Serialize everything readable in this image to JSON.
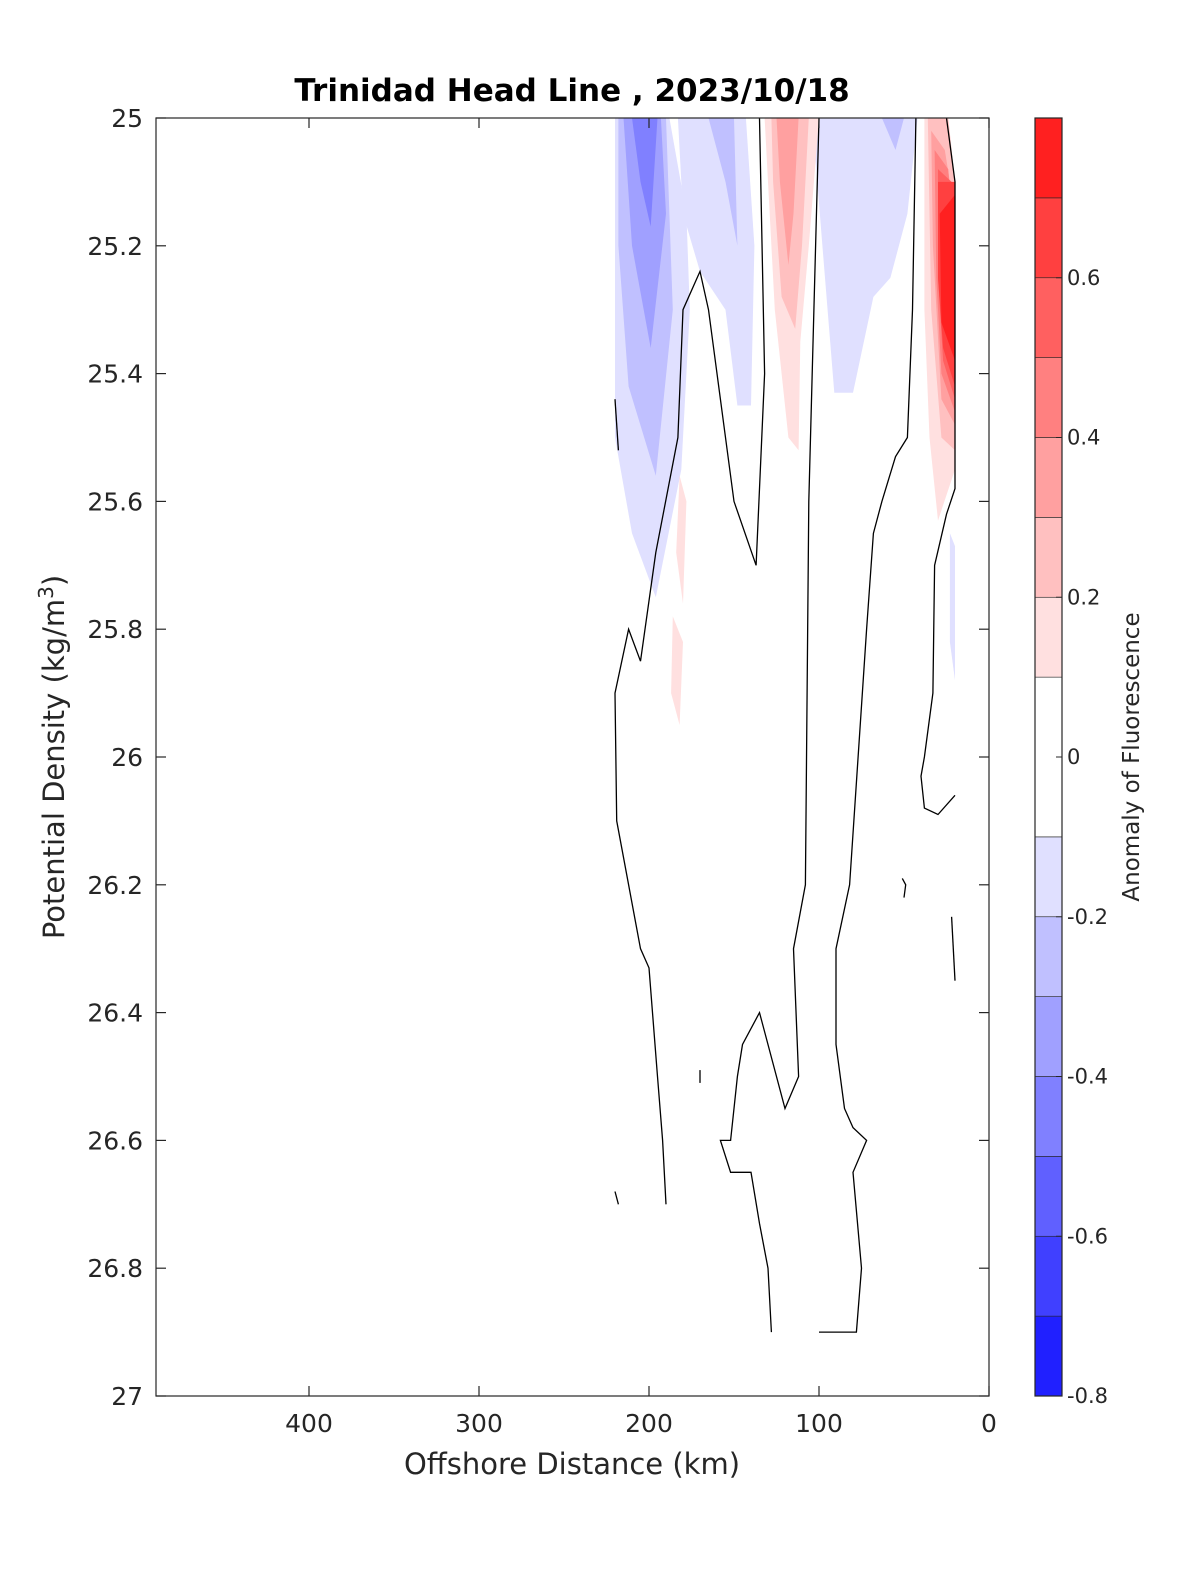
{
  "chart_data": {
    "type": "contour",
    "title": "Trinidad Head Line , 2023/10/18",
    "xlabel": "Offshore Distance (km)",
    "ylabel_main": "Potential Density (kg/m",
    "ylabel_sup": "3",
    "ylabel_end": ")",
    "xlim": [
      490,
      0
    ],
    "ylim": [
      25,
      27
    ],
    "x_reversed": true,
    "y_reversed": true,
    "x_ticks": [
      400,
      300,
      200,
      100,
      0
    ],
    "y_ticks": [
      25,
      25.2,
      25.4,
      25.6,
      25.8,
      26,
      26.2,
      26.4,
      26.6,
      26.8,
      27
    ],
    "y_tick_labels": [
      "25",
      "25.2",
      "25.4",
      "25.6",
      "25.8",
      "26",
      "26.2",
      "26.4",
      "26.6",
      "26.8",
      "27"
    ],
    "colorbar": {
      "label": "Anomaly of Fluorescence",
      "range": [
        -0.8,
        0.8
      ],
      "ticks": [
        -0.8,
        -0.6,
        -0.4,
        -0.2,
        0,
        0.2,
        0.4,
        0.6
      ],
      "tick_labels": [
        "-0.8",
        "-0.6",
        "-0.4",
        "-0.2",
        "0",
        "0.2",
        "0.4",
        "0.6"
      ],
      "levels": [
        -0.8,
        -0.7,
        -0.6,
        -0.5,
        -0.4,
        -0.3,
        -0.2,
        -0.1,
        0.1,
        0.2,
        0.3,
        0.4,
        0.5,
        0.6,
        0.7,
        0.8
      ],
      "colors": [
        "#0000ff",
        "#2020ff",
        "#4040ff",
        "#6060ff",
        "#8080ff",
        "#a0a0ff",
        "#c0c0ff",
        "#e0e0ff",
        "#ffffff",
        "#ffe0e0",
        "#ffc0c0",
        "#ffa0a0",
        "#ff8080",
        "#ff6060",
        "#ff4040",
        "#ff2020",
        "#ff0000"
      ]
    },
    "filled_regions": [
      {
        "level": -0.1,
        "color": "#e0e0ff",
        "points": [
          [
            220,
            25
          ],
          [
            188,
            25
          ],
          [
            178,
            25.15
          ],
          [
            176,
            25.3
          ],
          [
            181,
            25.55
          ],
          [
            196,
            25.75
          ],
          [
            210,
            25.65
          ],
          [
            220,
            25.5
          ]
        ]
      },
      {
        "level": -0.1,
        "color": "#e0e0ff",
        "points": [
          [
            183,
            25
          ],
          [
            143,
            25
          ],
          [
            138,
            25.2
          ],
          [
            140,
            25.45
          ],
          [
            148,
            25.45
          ],
          [
            155,
            25.3
          ],
          [
            170,
            25.24
          ],
          [
            180,
            25.15
          ]
        ]
      },
      {
        "level": -0.1,
        "color": "#e0e0ff",
        "points": [
          [
            104,
            25
          ],
          [
            42,
            25
          ],
          [
            48,
            25.15
          ],
          [
            58,
            25.25
          ],
          [
            68,
            25.28
          ],
          [
            80,
            25.43
          ],
          [
            91,
            25.43
          ],
          [
            98,
            25.2
          ]
        ]
      },
      {
        "level": -0.1,
        "color": "#e0e0ff",
        "points": [
          [
            23,
            25.65
          ],
          [
            20,
            25.67
          ],
          [
            20,
            25.88
          ],
          [
            23,
            25.82
          ]
        ]
      },
      {
        "level": -0.2,
        "color": "#c0c0ff",
        "points": [
          [
            218,
            25
          ],
          [
            190,
            25
          ],
          [
            186,
            25.3
          ],
          [
            196,
            25.56
          ],
          [
            212,
            25.42
          ],
          [
            218,
            25.2
          ]
        ]
      },
      {
        "level": -0.2,
        "color": "#c0c0ff",
        "points": [
          [
            165,
            25
          ],
          [
            150,
            25
          ],
          [
            148,
            25.2
          ],
          [
            155,
            25.1
          ]
        ]
      },
      {
        "level": -0.2,
        "color": "#c0c0ff",
        "points": [
          [
            63,
            25
          ],
          [
            50,
            25
          ],
          [
            55,
            25.05
          ]
        ]
      },
      {
        "level": -0.3,
        "color": "#a0a0ff",
        "points": [
          [
            215,
            25
          ],
          [
            193,
            25
          ],
          [
            190,
            25.15
          ],
          [
            199,
            25.36
          ],
          [
            210,
            25.2
          ]
        ]
      },
      {
        "level": -0.4,
        "color": "#8080ff",
        "points": [
          [
            210,
            25
          ],
          [
            195,
            25
          ],
          [
            199,
            25.17
          ],
          [
            205,
            25.1
          ]
        ]
      },
      {
        "level": 0.1,
        "color": "#ffe0e0",
        "points": [
          [
            132,
            25
          ],
          [
            100,
            25
          ],
          [
            106,
            25.2
          ],
          [
            111,
            25.35
          ],
          [
            112,
            25.52
          ],
          [
            118,
            25.5
          ],
          [
            126,
            25.3
          ]
        ]
      },
      {
        "level": 0.1,
        "color": "#ffe0e0",
        "points": [
          [
            38,
            25
          ],
          [
            24,
            25
          ],
          [
            20,
            25.1
          ],
          [
            20,
            25.55
          ],
          [
            30,
            25.63
          ],
          [
            35,
            25.5
          ],
          [
            38,
            25.3
          ]
        ]
      },
      {
        "level": 0.1,
        "color": "#ffe0e0",
        "points": [
          [
            182,
            25.56
          ],
          [
            178,
            25.6
          ],
          [
            180,
            25.76
          ],
          [
            184,
            25.68
          ]
        ]
      },
      {
        "level": 0.1,
        "color": "#ffe0e0",
        "points": [
          [
            186,
            25.78
          ],
          [
            180,
            25.82
          ],
          [
            182,
            25.95
          ],
          [
            187,
            25.9
          ]
        ]
      },
      {
        "level": 0.2,
        "color": "#ffc0c0",
        "points": [
          [
            128,
            25
          ],
          [
            106,
            25
          ],
          [
            110,
            25.2
          ],
          [
            114,
            25.33
          ],
          [
            122,
            25.28
          ],
          [
            127,
            25.1
          ]
        ]
      },
      {
        "level": 0.2,
        "color": "#ffc0c0",
        "points": [
          [
            36,
            25
          ],
          [
            24,
            25
          ],
          [
            20,
            25.1
          ],
          [
            20,
            25.52
          ],
          [
            28,
            25.5
          ],
          [
            34,
            25.3
          ]
        ]
      },
      {
        "level": 0.3,
        "color": "#ffa0a0",
        "points": [
          [
            125,
            25
          ],
          [
            112,
            25
          ],
          [
            115,
            25.15
          ],
          [
            118,
            25.23
          ],
          [
            123,
            25.1
          ]
        ]
      },
      {
        "level": 0.3,
        "color": "#ffa0a0",
        "points": [
          [
            34,
            25.02
          ],
          [
            26,
            25.05
          ],
          [
            20,
            25.15
          ],
          [
            20,
            25.48
          ],
          [
            28,
            25.44
          ],
          [
            33,
            25.2
          ]
        ]
      },
      {
        "level": 0.4,
        "color": "#ff8080",
        "points": [
          [
            32,
            25.05
          ],
          [
            24,
            25.08
          ],
          [
            20,
            25.2
          ],
          [
            20,
            25.46
          ],
          [
            28,
            25.4
          ],
          [
            31,
            25.25
          ]
        ]
      },
      {
        "level": 0.5,
        "color": "#ff6060",
        "points": [
          [
            30,
            25.08
          ],
          [
            22,
            25.1
          ],
          [
            20,
            25.2
          ],
          [
            20,
            25.44
          ],
          [
            27,
            25.38
          ],
          [
            30,
            25.25
          ]
        ]
      },
      {
        "level": 0.6,
        "color": "#ff4040",
        "points": [
          [
            30,
            25.1
          ],
          [
            20,
            25.1
          ],
          [
            20,
            25.42
          ],
          [
            27,
            25.36
          ],
          [
            30,
            25.25
          ]
        ]
      },
      {
        "level": 0.7,
        "color": "#ff2020",
        "points": [
          [
            29,
            25.15
          ],
          [
            20,
            25.12
          ],
          [
            20,
            25.38
          ],
          [
            28,
            25.32
          ]
        ]
      }
    ],
    "zero_contours": [
      [
        [
          135,
          25
        ],
        [
          132,
          25.4
        ],
        [
          137,
          25.7
        ],
        [
          150,
          25.6
        ],
        [
          160,
          25.4
        ],
        [
          165,
          25.3
        ],
        [
          170,
          25.24
        ],
        [
          180,
          25.3
        ],
        [
          183,
          25.5
        ],
        [
          196,
          25.68
        ],
        [
          205,
          25.85
        ],
        [
          212,
          25.8
        ],
        [
          220,
          25.9
        ],
        [
          219,
          26.1
        ],
        [
          212,
          26.2
        ],
        [
          205,
          26.3
        ],
        [
          200,
          26.33
        ],
        [
          195,
          26.5
        ],
        [
          192,
          26.6
        ],
        [
          190,
          26.7
        ]
      ],
      [
        [
          100,
          25
        ],
        [
          103,
          25.3
        ],
        [
          106,
          25.6
        ],
        [
          108,
          26.2
        ],
        [
          115,
          26.3
        ],
        [
          112,
          26.5
        ],
        [
          120,
          26.55
        ],
        [
          135,
          26.4
        ],
        [
          145,
          26.45
        ],
        [
          148,
          26.5
        ],
        [
          152,
          26.6
        ],
        [
          158,
          26.6
        ],
        [
          152,
          26.65
        ],
        [
          140,
          26.65
        ],
        [
          135,
          26.73
        ],
        [
          130,
          26.8
        ],
        [
          128,
          26.9
        ]
      ],
      [
        [
          43,
          25
        ],
        [
          45,
          25.3
        ],
        [
          48,
          25.5
        ],
        [
          55,
          25.53
        ],
        [
          63,
          25.6
        ],
        [
          68,
          25.65
        ],
        [
          72,
          25.8
        ],
        [
          77,
          26.0
        ],
        [
          82,
          26.2
        ],
        [
          90,
          26.3
        ],
        [
          90,
          26.45
        ],
        [
          85,
          26.55
        ],
        [
          80,
          26.58
        ],
        [
          72,
          26.6
        ],
        [
          80,
          26.65
        ],
        [
          75,
          26.8
        ],
        [
          78,
          26.9
        ],
        [
          100,
          26.9
        ]
      ],
      [
        [
          25,
          25
        ],
        [
          20,
          25.1
        ],
        [
          20,
          25.58
        ],
        [
          25,
          25.62
        ],
        [
          32,
          25.7
        ],
        [
          33,
          25.9
        ],
        [
          38,
          26.0
        ],
        [
          40,
          26.03
        ],
        [
          38,
          26.08
        ],
        [
          30,
          26.09
        ],
        [
          20,
          26.06
        ]
      ],
      [
        [
          22,
          26.25
        ],
        [
          20,
          26.35
        ]
      ],
      [
        [
          220,
          25.44
        ],
        [
          218,
          25.52
        ]
      ],
      [
        [
          220,
          26.68
        ],
        [
          218,
          26.7
        ]
      ],
      [
        [
          51,
          26.19
        ],
        [
          49,
          26.2
        ],
        [
          50,
          26.22
        ]
      ],
      [
        [
          170,
          26.49
        ],
        [
          170,
          26.51
        ]
      ]
    ]
  }
}
